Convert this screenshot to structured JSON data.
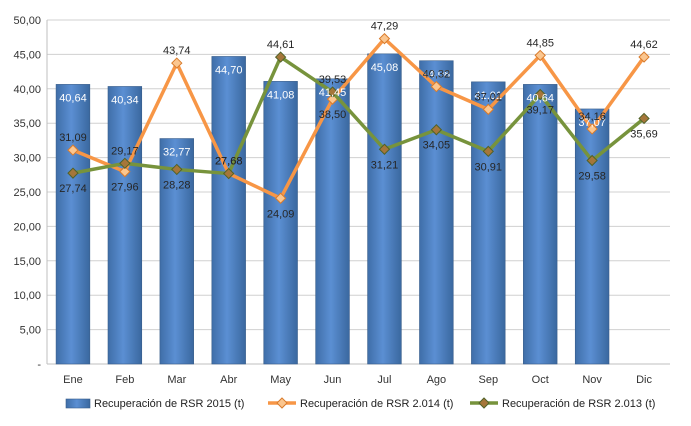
{
  "chart_data": {
    "type": "bar",
    "categories": [
      "Ene",
      "Feb",
      "Mar",
      "Abr",
      "May",
      "Jun",
      "Jul",
      "Ago",
      "Sep",
      "Oct",
      "Nov",
      "Dic"
    ],
    "ylim": [
      0,
      50
    ],
    "yticks": [
      "-",
      "5,00",
      "10,00",
      "15,00",
      "20,00",
      "25,00",
      "30,00",
      "35,00",
      "40,00",
      "45,00",
      "50,00"
    ],
    "grid": true,
    "legend_position": "bottom",
    "series": [
      {
        "name": "Recuperación de RSR 2015 (t)",
        "type": "bar",
        "color": "#4f81bd",
        "values": [
          40.64,
          40.34,
          32.77,
          44.7,
          41.08,
          41.45,
          45.08,
          44.08,
          41.01,
          40.64,
          37.07,
          null
        ],
        "labels": [
          "40,64",
          "40,34",
          "32,77",
          "44,70",
          "41,08",
          "41,45",
          "45,08",
          "44,08",
          "41,01",
          "40,64",
          "37,07",
          ""
        ]
      },
      {
        "name": "Recuperación de RSR 2.014 (t)",
        "type": "line",
        "color": "#f79646",
        "values": [
          31.09,
          27.96,
          43.74,
          27.68,
          24.09,
          38.5,
          47.29,
          40.32,
          37.01,
          44.85,
          34.16,
          44.62
        ],
        "labels": [
          "31,09",
          "27,96",
          "43,74",
          "27,68",
          "24,09",
          "38,50",
          "47,29",
          "40,32",
          "37,01",
          "44,85",
          "34,16",
          "44,62"
        ]
      },
      {
        "name": "Recuperación de RSR 2.013 (t)",
        "type": "line",
        "color": "#77933c",
        "values": [
          27.74,
          29.17,
          28.28,
          27.68,
          44.61,
          39.53,
          31.21,
          34.05,
          30.91,
          39.17,
          29.58,
          35.69
        ],
        "labels": [
          "27,74",
          "29,17",
          "28,28",
          "27,68",
          "44,61",
          "39,53",
          "31,21",
          "34,05",
          "30,91",
          "39,17",
          "29,58",
          "35,69"
        ]
      }
    ]
  }
}
